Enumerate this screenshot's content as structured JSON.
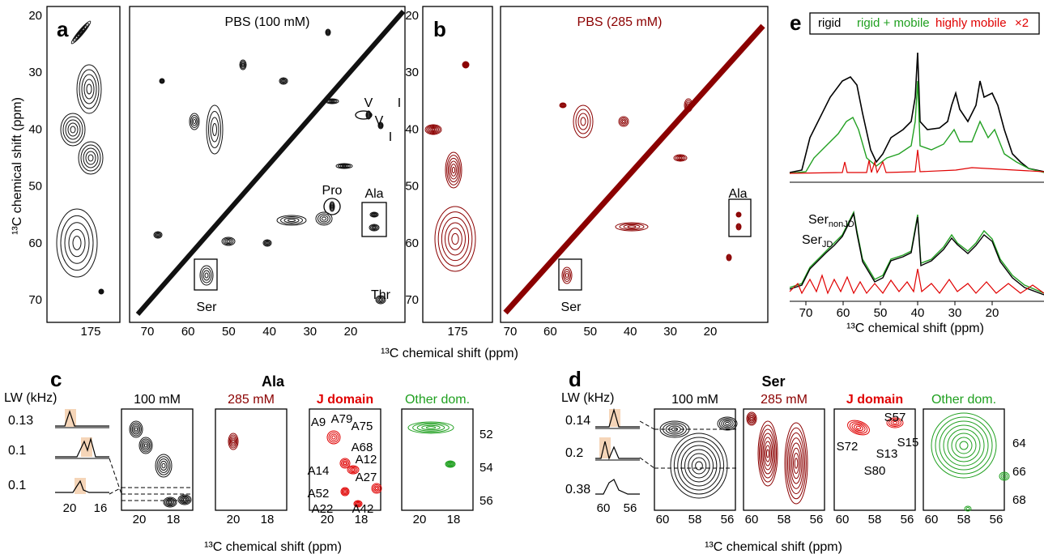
{
  "panel_a": {
    "letter": "a",
    "title": "PBS (100 mM)",
    "y_axis_label": "¹³C chemical shift (ppm)",
    "y_ticks": [
      20,
      30,
      40,
      50,
      60,
      70
    ],
    "strip_x_ticks": [
      175
    ],
    "x_ticks": [
      70,
      60,
      50,
      40,
      30,
      20
    ],
    "annotations": [
      "V",
      "I",
      "V",
      "I",
      "Pro",
      "Ala",
      "Ser",
      "Thr"
    ]
  },
  "panel_b": {
    "letter": "b",
    "title": "PBS (285 mM)",
    "y_ticks": [
      20,
      30,
      40,
      50,
      60,
      70
    ],
    "strip_x_ticks": [
      175
    ],
    "x_ticks": [
      70,
      60,
      50,
      40,
      30,
      20
    ],
    "annotations": [
      "Ala",
      "Ser"
    ]
  },
  "panels_ab_x_axis_label": "¹³C chemical shift (ppm)",
  "panel_e": {
    "letter": "e",
    "legend": [
      "rigid",
      "rigid + mobile",
      "highly mobile",
      "×2"
    ],
    "annotations": [
      {
        "text": "Ser",
        "subscript": "nonJD"
      },
      {
        "text": "Ser",
        "subscript": "JD"
      }
    ],
    "x_ticks": [
      70,
      60,
      50,
      40,
      30,
      20
    ],
    "x_axis_label": "¹³C chemical shift (ppm)"
  },
  "panel_c": {
    "letter": "c",
    "title": "Ala",
    "lw_label": "LW (kHz)",
    "lw_values": [
      0.13,
      0.1,
      0.1
    ],
    "lw_x_ticks": [
      20,
      16
    ],
    "subpanels": [
      "100 mM",
      "285 mM",
      "J domain",
      "Other dom."
    ],
    "x_ticks": [
      20,
      18
    ],
    "y_ticks": [
      52,
      54,
      56
    ],
    "peak_labels": [
      "A9",
      "A79",
      "A75",
      "A68",
      "A14",
      "A12",
      "A27",
      "A52",
      "A22",
      "A42"
    ],
    "x_axis_label": "¹³C chemical shift (ppm)"
  },
  "panel_d": {
    "letter": "d",
    "title": "Ser",
    "lw_label": "LW (kHz)",
    "lw_values": [
      0.14,
      0.2,
      0.38
    ],
    "lw_x_ticks": [
      60,
      56
    ],
    "subpanels": [
      "100 mM",
      "285 mM",
      "J domain",
      "Other dom."
    ],
    "x_ticks": [
      60,
      58,
      56
    ],
    "y_ticks": [
      64,
      66,
      68
    ],
    "peak_labels": [
      "S57",
      "S72",
      "S13",
      "S15",
      "S80"
    ],
    "x_axis_label": "¹³C chemical shift (ppm)"
  }
}
